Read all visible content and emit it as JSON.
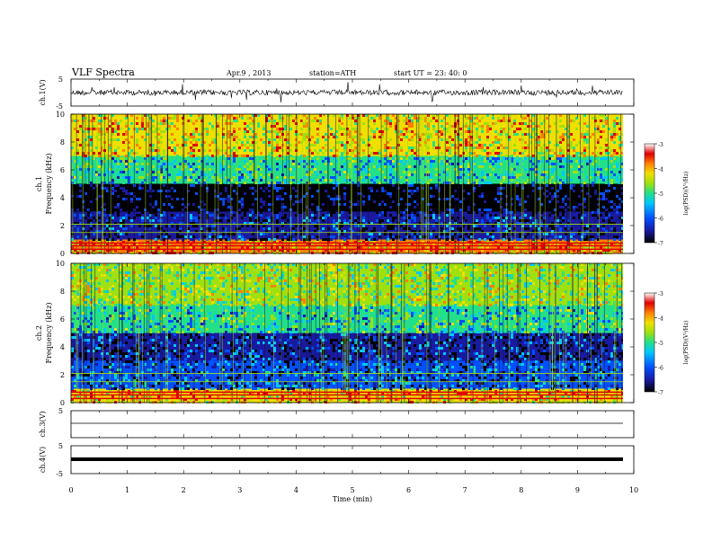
{
  "header": {
    "title": "VLF  Spectra",
    "date": "Apr.9  , 2013",
    "station": "station=ATH",
    "start": "start  UT  =    23: 40: 0"
  },
  "colors": {
    "spectrogram_scale": [
      "#000000",
      "#1a1aa0",
      "#0050ff",
      "#00c8ff",
      "#22e08a",
      "#9fe010",
      "#f0e000",
      "#ff8000",
      "#e00000",
      "#ffffff"
    ],
    "trace": "#000000"
  },
  "chart_data": [
    {
      "type": "line",
      "panel": "ch1",
      "ylabel": "ch.1(V)",
      "ylim": [
        -5,
        5
      ],
      "yticks": [
        "5",
        "-5"
      ],
      "xlim": [
        0,
        10
      ],
      "description_values": "noisy waveform, mean ~0 V, spikes to about ±3 V"
    },
    {
      "type": "heatmap",
      "panel": "ch1-spectrogram",
      "ylabel": "ch.1\nFrequency (kHz)",
      "ylim": [
        0,
        10
      ],
      "yticks": [
        "0",
        "2",
        "4",
        "6",
        "8",
        "10"
      ],
      "xlim": [
        0,
        10
      ],
      "colorbar": {
        "label": "log(PSD)(V²/Hz)",
        "ticks": [
          "-3",
          "-4",
          "-5",
          "-6",
          "-7"
        ],
        "range": [
          -7,
          -3
        ]
      },
      "bands": [
        {
          "freq": [
            0,
            1
          ],
          "level": -3.4
        },
        {
          "freq": [
            1,
            3
          ],
          "level": -6.3
        },
        {
          "freq": [
            3,
            5
          ],
          "level": -6.6
        },
        {
          "freq": [
            5,
            7
          ],
          "level": -5.0
        },
        {
          "freq": [
            7,
            10
          ],
          "level": -3.8
        }
      ]
    },
    {
      "type": "heatmap",
      "panel": "ch2-spectrogram",
      "ylabel": "ch.2\nFrequency (kHz)",
      "ylim": [
        0,
        10
      ],
      "yticks": [
        "0",
        "2",
        "4",
        "6",
        "8",
        "10"
      ],
      "xlim": [
        0,
        10
      ],
      "colorbar": {
        "label": "log(PSD)(V²/Hz)",
        "ticks": [
          "-3",
          "-4",
          "-5",
          "-6",
          "-7"
        ],
        "range": [
          -7,
          -3
        ]
      },
      "bands": [
        {
          "freq": [
            0,
            1
          ],
          "level": -3.6
        },
        {
          "freq": [
            1,
            3
          ],
          "level": -5.9
        },
        {
          "freq": [
            3,
            5
          ],
          "level": -6.2
        },
        {
          "freq": [
            5,
            7
          ],
          "level": -5.0
        },
        {
          "freq": [
            7,
            10
          ],
          "level": -4.3
        }
      ]
    },
    {
      "type": "line",
      "panel": "ch3",
      "ylabel": "ch.3(V)",
      "ylim": [
        -5,
        5
      ],
      "yticks": [
        "5"
      ],
      "xlim": [
        0,
        10
      ],
      "description_values": "flat trace at ~0 V"
    },
    {
      "type": "line",
      "panel": "ch4",
      "ylabel": "ch.4(V)",
      "ylim": [
        -5,
        5
      ],
      "yticks": [
        "5",
        "-5"
      ],
      "xlim": [
        0,
        10
      ],
      "xlabel": "Time  (min)",
      "xticks": [
        "0",
        "1",
        "2",
        "3",
        "4",
        "5",
        "6",
        "7",
        "8",
        "9",
        "10"
      ],
      "description_values": "thick flat trace at ~0 V with small spikes"
    }
  ]
}
